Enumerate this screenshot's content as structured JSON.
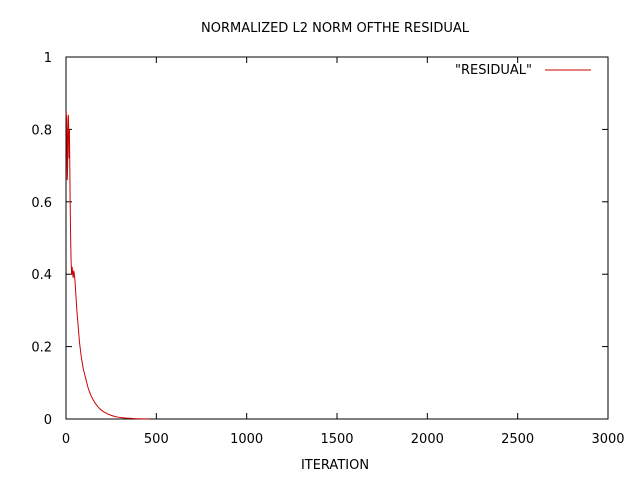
{
  "chart_data": {
    "type": "line",
    "title": "NORMALIZED L2 NORM OFTHE RESIDUAL",
    "xlabel": "ITERATION",
    "ylabel": "",
    "xlim": [
      0,
      3000
    ],
    "ylim": [
      0,
      1
    ],
    "xticks": [
      0,
      500,
      1000,
      1500,
      2000,
      2500,
      3000
    ],
    "yticks": [
      0,
      0.2,
      0.4,
      0.6,
      0.8,
      1
    ],
    "xtick_labels": [
      "0",
      "500",
      "1000",
      "1500",
      "2000",
      "2500",
      "3000"
    ],
    "ytick_labels": [
      "0",
      "0.2",
      "0.4",
      "0.6",
      "0.8",
      "1"
    ],
    "grid": false,
    "legend": "top-right",
    "series": [
      {
        "name": "\"RESIDUAL\"",
        "color": "#cc0000",
        "x": [
          1,
          3,
          5,
          7,
          9,
          11,
          13,
          15,
          17,
          19,
          21,
          23,
          25,
          28,
          31,
          34,
          37,
          40,
          43,
          46,
          50,
          55,
          60,
          65,
          70,
          75,
          80,
          85,
          90,
          95,
          100,
          110,
          120,
          130,
          140,
          150,
          160,
          170,
          180,
          190,
          200,
          215,
          230,
          250,
          270,
          290,
          320,
          350,
          380,
          420,
          460
        ],
        "y": [
          0.85,
          0.83,
          0.78,
          0.66,
          0.7,
          0.83,
          0.84,
          0.8,
          0.72,
          0.8,
          0.7,
          0.6,
          0.52,
          0.44,
          0.4,
          0.42,
          0.4,
          0.39,
          0.41,
          0.4,
          0.38,
          0.34,
          0.3,
          0.27,
          0.24,
          0.21,
          0.19,
          0.17,
          0.155,
          0.14,
          0.13,
          0.11,
          0.09,
          0.075,
          0.063,
          0.053,
          0.045,
          0.038,
          0.032,
          0.027,
          0.023,
          0.018,
          0.014,
          0.01,
          0.007,
          0.005,
          0.003,
          0.002,
          0.001,
          0.0005,
          0.0002
        ]
      }
    ]
  }
}
